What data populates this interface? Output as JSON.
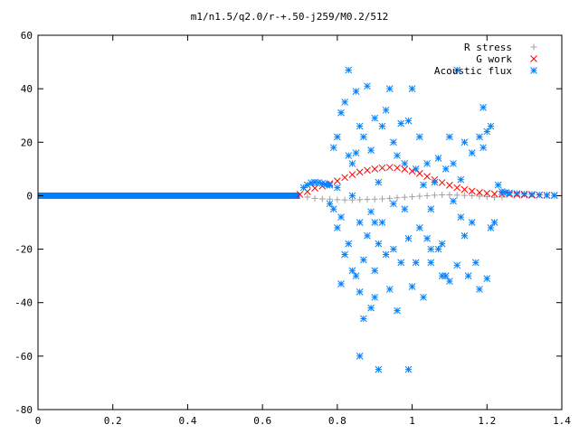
{
  "chart_data": {
    "type": "scatter",
    "title": "m1/n1.5/q2.0/r-+.50-j259/M0.2/512",
    "xlabel": "",
    "ylabel": "",
    "xlim": [
      0,
      1.4
    ],
    "ylim": [
      -80,
      60
    ],
    "x_ticks": [
      "0",
      "0.2",
      "0.4",
      "0.6",
      "0.8",
      "1",
      "1.2",
      "1.4"
    ],
    "y_ticks": [
      "60",
      "40",
      "20",
      "0",
      "-20",
      "-40",
      "-60",
      "-80"
    ],
    "grid": false,
    "legend_position": "top-right",
    "series": [
      {
        "name": "R stress",
        "marker": "plus",
        "color": "#a0a0a0",
        "x": [
          0.72,
          0.74,
          0.76,
          0.78,
          0.8,
          0.82,
          0.84,
          0.86,
          0.88,
          0.9,
          0.92,
          0.94,
          0.96,
          0.98,
          1.0,
          1.02,
          1.04,
          1.06,
          1.08,
          1.1,
          1.12,
          1.14,
          1.16,
          1.18,
          1.2,
          1.22,
          1.24
        ],
        "y": [
          -0.5,
          -1.0,
          -1.2,
          -1.3,
          -1.5,
          -1.6,
          -1.6,
          -1.5,
          -1.4,
          -1.3,
          -1.2,
          -1.0,
          -0.8,
          -0.6,
          -0.4,
          -0.2,
          0.0,
          0.2,
          0.3,
          0.3,
          0.2,
          0.1,
          0.0,
          -0.2,
          -0.4,
          -0.6,
          -0.5
        ]
      },
      {
        "name": "G work",
        "marker": "cross",
        "color": "#ff0000",
        "x": [
          0.7,
          0.72,
          0.74,
          0.76,
          0.78,
          0.8,
          0.82,
          0.84,
          0.86,
          0.88,
          0.9,
          0.92,
          0.94,
          0.96,
          0.98,
          1.0,
          1.02,
          1.04,
          1.06,
          1.08,
          1.1,
          1.12,
          1.14,
          1.16,
          1.18,
          1.2,
          1.22,
          1.24,
          1.26,
          1.28,
          1.3,
          1.32,
          1.34,
          1.36,
          1.38
        ],
        "y": [
          0.5,
          1.5,
          2.8,
          3.6,
          4.5,
          5.5,
          6.8,
          7.9,
          8.8,
          9.5,
          10.0,
          10.4,
          10.6,
          10.4,
          9.9,
          9.2,
          8.3,
          7.2,
          6.0,
          4.9,
          3.9,
          3.0,
          2.3,
          1.7,
          1.2,
          0.9,
          0.7,
          0.6,
          0.5,
          0.4,
          0.3,
          0.2,
          0.2,
          0.1,
          0.1
        ]
      },
      {
        "name": "Acoustic flux",
        "marker": "star",
        "color": "#0080ff",
        "baseline": {
          "x_from": 0,
          "x_to": 0.7,
          "y": 0
        },
        "x": [
          0.71,
          0.72,
          0.73,
          0.74,
          0.75,
          0.76,
          0.77,
          0.78,
          0.78,
          0.79,
          0.79,
          0.8,
          0.8,
          0.8,
          0.81,
          0.81,
          0.81,
          0.82,
          0.82,
          0.83,
          0.83,
          0.84,
          0.84,
          0.84,
          0.85,
          0.85,
          0.85,
          0.86,
          0.86,
          0.86,
          0.87,
          0.87,
          0.87,
          0.88,
          0.88,
          0.89,
          0.89,
          0.89,
          0.9,
          0.9,
          0.9,
          0.91,
          0.91,
          0.91,
          0.92,
          0.92,
          0.93,
          0.93,
          0.94,
          0.94,
          0.95,
          0.95,
          0.96,
          0.96,
          0.97,
          0.97,
          0.98,
          0.98,
          0.99,
          0.99,
          1.0,
          1.0,
          1.01,
          1.01,
          1.02,
          1.02,
          1.03,
          1.03,
          1.04,
          1.04,
          1.05,
          1.05,
          1.06,
          1.07,
          1.07,
          1.08,
          1.08,
          1.09,
          1.1,
          1.1,
          1.11,
          1.11,
          1.12,
          1.12,
          1.13,
          1.14,
          1.14,
          1.15,
          1.16,
          1.16,
          1.17,
          1.18,
          1.18,
          1.19,
          1.2,
          1.2,
          1.21,
          1.21,
          1.22,
          1.23,
          1.24,
          1.25,
          1.26,
          1.28,
          1.3,
          1.32,
          1.34,
          1.36,
          1.38,
          0.83,
          0.86,
          0.9,
          0.95,
          0.99,
          1.05,
          1.09,
          1.13,
          1.19
        ],
        "y": [
          3.0,
          4.0,
          4.8,
          5.0,
          4.9,
          4.6,
          4.2,
          3.9,
          -3.0,
          18.0,
          -5.0,
          22.0,
          -12.0,
          3.0,
          31.0,
          -8.0,
          -33.0,
          35.0,
          -22.0,
          47.0,
          -18.0,
          12.0,
          -28.0,
          0.0,
          39.0,
          -30.0,
          16.0,
          26.0,
          -10.0,
          -36.0,
          22.0,
          -24.0,
          -46.0,
          41.0,
          -15.0,
          17.0,
          -6.0,
          -42.0,
          29.0,
          -28.0,
          -38.0,
          5.0,
          -18.0,
          -65.0,
          26.0,
          -10.0,
          32.0,
          -22.0,
          40.0,
          -35.0,
          20.0,
          -20.0,
          15.0,
          -43.0,
          27.0,
          -25.0,
          -5.0,
          12.0,
          -16.0,
          -65.0,
          40.0,
          -34.0,
          10.0,
          -25.0,
          -12.0,
          22.0,
          -38.0,
          4.0,
          -16.0,
          12.0,
          -25.0,
          -5.0,
          5.0,
          -20.0,
          14.0,
          -30.0,
          -18.0,
          10.0,
          -32.0,
          22.0,
          12.0,
          -2.0,
          -26.0,
          47.0,
          -8.0,
          -15.0,
          20.0,
          -30.0,
          16.0,
          -10.0,
          -25.0,
          22.0,
          -35.0,
          33.0,
          24.0,
          -31.0,
          26.0,
          -12.0,
          -10.0,
          4.0,
          1.5,
          1.2,
          1.0,
          0.8,
          0.6,
          0.5,
          0.3,
          0.2,
          0.1,
          15.0,
          -60.0,
          -10.0,
          -3.0,
          28.0,
          -20.0,
          -30.0,
          6.0,
          18.0
        ]
      }
    ]
  }
}
